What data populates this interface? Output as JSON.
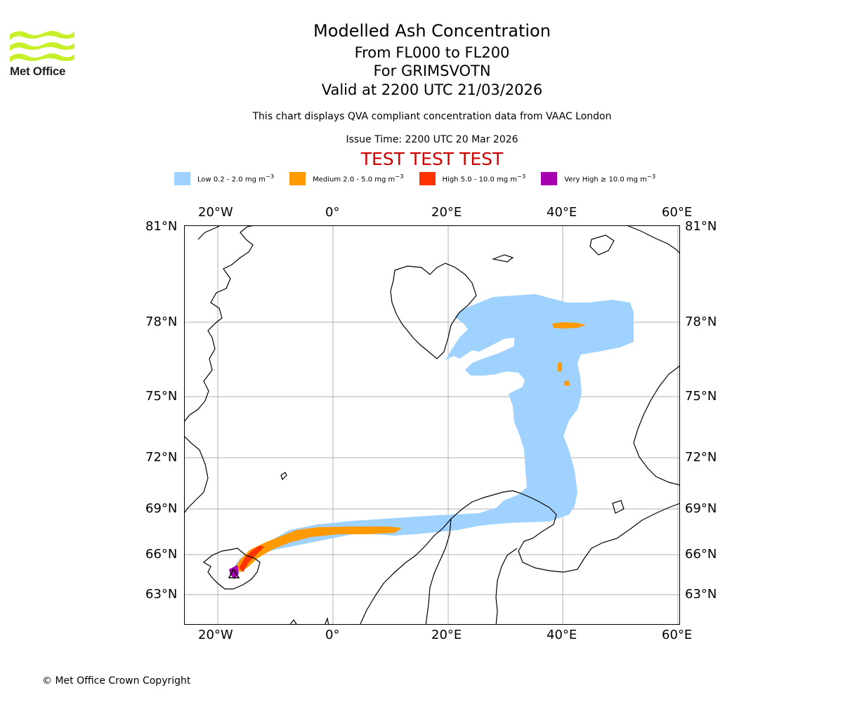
{
  "branding": {
    "logo_text": "Met Office",
    "logo_color": "#c8f02a"
  },
  "header": {
    "title": "Modelled Ash Concentration",
    "levels": "From FL000 to FL200",
    "volcano": "For GRIMSVOTN",
    "valid": "Valid at 2200 UTC 21/03/2026",
    "description": "This chart displays QVA compliant concentration data from VAAC London",
    "issue_time": "Issue Time: 2200 UTC 20 Mar 2026",
    "test_banner": "TEST TEST TEST"
  },
  "legend": [
    {
      "label": "Low 0.2 - 2.0 mg m",
      "sup": "−3",
      "color": "#a0d2ff"
    },
    {
      "label": "Medium 2.0 - 5.0 mg m",
      "sup": "−3",
      "color": "#ff9900"
    },
    {
      "label": "High 5.0 - 10.0 mg m",
      "sup": "−3",
      "color": "#ff3300"
    },
    {
      "label": "Very High ≥ 10.0 mg m",
      "sup": "−3",
      "color": "#a600b0"
    }
  ],
  "map": {
    "longitude_labels": [
      "20°W",
      "0°",
      "20°E",
      "40°E",
      "60°E"
    ],
    "latitude_labels": [
      "81°N",
      "78°N",
      "75°N",
      "72°N",
      "69°N",
      "66°N",
      "63°N"
    ],
    "longitudes": [
      -20,
      0,
      20,
      40,
      60
    ],
    "latitudes": [
      81,
      78,
      75,
      72,
      69,
      66,
      63
    ],
    "volcano_name": "GRIMSVOTN"
  },
  "footer": {
    "copyright": "© Met Office Crown Copyright"
  }
}
